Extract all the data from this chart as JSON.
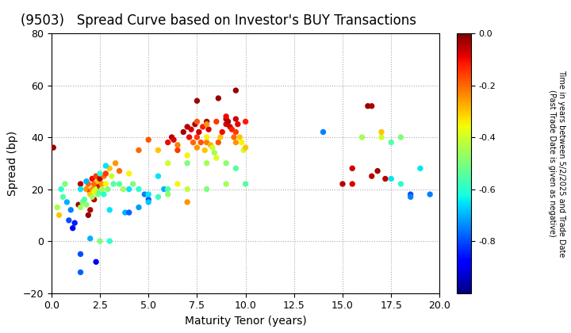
{
  "title": "(9503)   Spread Curve based on Investor's BUY Transactions",
  "xlabel": "Maturity Tenor (years)",
  "ylabel": "Spread (bp)",
  "colorbar_label": "Time in years between 5/2/2025 and Trade Date\n(Past Trade Date is given as negative)",
  "xlim": [
    0.0,
    20.0
  ],
  "ylim": [
    -20,
    80
  ],
  "xticks": [
    0.0,
    2.5,
    5.0,
    7.5,
    10.0,
    12.5,
    15.0,
    17.5,
    20.0
  ],
  "yticks": [
    -20,
    0,
    20,
    40,
    60,
    80
  ],
  "cmap": "jet",
  "vmin": -1.0,
  "vmax": 0.0,
  "colorbar_ticks": [
    0.0,
    -0.2,
    -0.4,
    -0.6,
    -0.8
  ],
  "points": [
    [
      0.1,
      36,
      -0.02
    ],
    [
      0.3,
      13,
      -0.45
    ],
    [
      0.4,
      10,
      -0.3
    ],
    [
      0.5,
      20,
      -0.6
    ],
    [
      0.6,
      17,
      -0.55
    ],
    [
      0.7,
      22,
      -0.5
    ],
    [
      0.8,
      15,
      -0.7
    ],
    [
      0.9,
      8,
      -0.8
    ],
    [
      1.0,
      12,
      -0.75
    ],
    [
      1.1,
      5,
      -0.9
    ],
    [
      1.2,
      7,
      -0.85
    ],
    [
      1.4,
      14,
      -0.02
    ],
    [
      1.5,
      22,
      -0.05
    ],
    [
      1.5,
      13,
      -0.45
    ],
    [
      1.6,
      15,
      -0.5
    ],
    [
      1.7,
      16,
      -0.55
    ],
    [
      1.8,
      14,
      -0.48
    ],
    [
      1.9,
      10,
      -0.02
    ],
    [
      2.0,
      12,
      -0.05
    ],
    [
      1.8,
      20,
      -0.25
    ],
    [
      1.9,
      22,
      -0.2
    ],
    [
      2.0,
      19,
      -0.15
    ],
    [
      2.1,
      24,
      -0.1
    ],
    [
      2.2,
      16,
      -0.05
    ],
    [
      2.3,
      21,
      -0.02
    ],
    [
      2.0,
      18,
      -0.3
    ],
    [
      2.1,
      20,
      -0.25
    ],
    [
      2.1,
      17,
      -0.45
    ],
    [
      2.2,
      19,
      -0.35
    ],
    [
      2.2,
      22,
      -0.2
    ],
    [
      2.3,
      25,
      -0.15
    ],
    [
      2.3,
      20,
      -0.4
    ],
    [
      2.4,
      23,
      -0.3
    ],
    [
      2.4,
      18,
      -0.5
    ],
    [
      2.5,
      21,
      -0.1
    ],
    [
      2.5,
      19,
      -0.55
    ],
    [
      2.5,
      24,
      -0.05
    ],
    [
      2.6,
      22,
      -0.25
    ],
    [
      2.6,
      20,
      -0.45
    ],
    [
      2.7,
      25,
      -0.2
    ],
    [
      2.7,
      18,
      -0.6
    ],
    [
      2.8,
      26,
      -0.15
    ],
    [
      2.8,
      22,
      -0.35
    ],
    [
      2.9,
      20,
      -0.5
    ],
    [
      3.0,
      28,
      -0.3
    ],
    [
      3.0,
      12,
      -0.65
    ],
    [
      3.1,
      25,
      -0.4
    ],
    [
      3.2,
      22,
      -0.55
    ],
    [
      3.3,
      30,
      -0.25
    ],
    [
      3.5,
      27,
      -0.2
    ],
    [
      3.7,
      20,
      -0.45
    ],
    [
      3.8,
      11,
      -0.7
    ],
    [
      4.0,
      26,
      -0.35
    ],
    [
      4.2,
      22,
      -0.5
    ],
    [
      4.5,
      20,
      -0.6
    ],
    [
      4.8,
      18,
      -0.75
    ],
    [
      5.0,
      16,
      -0.8
    ],
    [
      5.5,
      25,
      -0.65
    ],
    [
      5.8,
      20,
      -0.7
    ],
    [
      6.0,
      38,
      -0.1
    ],
    [
      6.2,
      40,
      -0.05
    ],
    [
      6.3,
      39,
      -0.08
    ],
    [
      6.5,
      35,
      -0.15
    ],
    [
      6.8,
      42,
      -0.03
    ],
    [
      7.0,
      44,
      -0.05
    ],
    [
      7.1,
      40,
      -0.1
    ],
    [
      7.2,
      43,
      -0.08
    ],
    [
      7.3,
      38,
      -0.2
    ],
    [
      7.4,
      45,
      -0.03
    ],
    [
      7.5,
      36,
      -0.25
    ],
    [
      7.5,
      40,
      -0.15
    ],
    [
      7.6,
      42,
      -0.07
    ],
    [
      7.7,
      38,
      -0.18
    ],
    [
      7.8,
      44,
      -0.12
    ],
    [
      7.9,
      35,
      -0.3
    ],
    [
      8.0,
      46,
      -0.04
    ],
    [
      8.0,
      38,
      -0.22
    ],
    [
      8.0,
      40,
      -0.35
    ],
    [
      8.1,
      43,
      -0.08
    ],
    [
      8.2,
      37,
      -0.28
    ],
    [
      8.3,
      36,
      -0.4
    ],
    [
      8.4,
      34,
      -0.45
    ],
    [
      8.6,
      55,
      -0.02
    ],
    [
      8.6,
      38,
      -0.18
    ],
    [
      8.7,
      40,
      -0.3
    ],
    [
      8.8,
      42,
      -0.1
    ],
    [
      9.0,
      47,
      -0.05
    ],
    [
      9.0,
      45,
      -0.08
    ],
    [
      9.1,
      46,
      -0.04
    ],
    [
      9.2,
      44,
      -0.07
    ],
    [
      9.3,
      43,
      -0.12
    ],
    [
      9.4,
      40,
      -0.2
    ],
    [
      9.5,
      38,
      -0.25
    ],
    [
      9.5,
      42,
      -0.15
    ],
    [
      9.6,
      45,
      -0.09
    ],
    [
      9.7,
      40,
      -0.3
    ],
    [
      9.8,
      38,
      -0.35
    ],
    [
      9.9,
      35,
      -0.4
    ],
    [
      10.0,
      36,
      -0.3
    ],
    [
      10.0,
      22,
      -0.55
    ],
    [
      9.5,
      58,
      -0.02
    ],
    [
      14.0,
      42,
      -0.75
    ],
    [
      15.0,
      22,
      -0.05
    ],
    [
      15.5,
      22,
      -0.08
    ],
    [
      16.3,
      52,
      -0.02
    ],
    [
      16.5,
      52,
      -0.04
    ],
    [
      16.5,
      25,
      -0.05
    ],
    [
      16.8,
      27,
      -0.03
    ],
    [
      17.0,
      40,
      -0.4
    ],
    [
      17.0,
      42,
      -0.3
    ],
    [
      17.5,
      38,
      -0.55
    ],
    [
      17.5,
      24,
      -0.65
    ],
    [
      18.0,
      40,
      -0.5
    ],
    [
      18.0,
      22,
      -0.6
    ],
    [
      18.5,
      18,
      -0.8
    ],
    [
      19.0,
      28,
      -0.65
    ],
    [
      19.5,
      18,
      -0.75
    ],
    [
      7.5,
      54,
      -0.03
    ],
    [
      7.0,
      15,
      -0.25
    ],
    [
      6.5,
      22,
      -0.35
    ],
    [
      3.5,
      22,
      -0.55
    ],
    [
      4.0,
      20,
      -0.65
    ],
    [
      2.5,
      0,
      -0.5
    ],
    [
      2.0,
      1,
      -0.7
    ],
    [
      1.5,
      -5,
      -0.8
    ],
    [
      1.5,
      -12,
      -0.78
    ],
    [
      2.3,
      -8,
      -0.9
    ],
    [
      3.0,
      0,
      -0.6
    ],
    [
      5.0,
      18,
      -0.65
    ],
    [
      6.0,
      20,
      -0.55
    ],
    [
      5.5,
      35,
      -0.3
    ],
    [
      6.0,
      30,
      -0.4
    ],
    [
      7.0,
      30,
      -0.5
    ],
    [
      7.0,
      33,
      -0.35
    ],
    [
      8.0,
      30,
      -0.45
    ],
    [
      8.5,
      32,
      -0.38
    ],
    [
      9.0,
      30,
      -0.48
    ],
    [
      9.5,
      28,
      -0.55
    ],
    [
      4.5,
      35,
      -0.2
    ],
    [
      5.0,
      39,
      -0.18
    ],
    [
      6.5,
      37,
      -0.22
    ],
    [
      7.5,
      46,
      -0.18
    ],
    [
      8.0,
      45,
      -0.25
    ],
    [
      8.5,
      46,
      -0.15
    ],
    [
      9.0,
      48,
      -0.1
    ],
    [
      9.5,
      47,
      -0.07
    ],
    [
      10.0,
      46,
      -0.12
    ],
    [
      9.0,
      22,
      -0.45
    ],
    [
      8.0,
      20,
      -0.5
    ],
    [
      7.0,
      20,
      -0.42
    ],
    [
      6.0,
      18,
      -0.48
    ],
    [
      5.5,
      17,
      -0.58
    ],
    [
      5.0,
      15,
      -0.68
    ],
    [
      4.5,
      13,
      -0.72
    ],
    [
      4.0,
      11,
      -0.78
    ],
    [
      2.5,
      26,
      -0.6
    ],
    [
      2.8,
      29,
      -0.65
    ],
    [
      1.5,
      20,
      -0.65
    ],
    [
      1.8,
      23,
      -0.7
    ],
    [
      17.2,
      24,
      -0.05
    ],
    [
      18.5,
      17,
      -0.75
    ],
    [
      15.5,
      28,
      -0.07
    ],
    [
      16.0,
      40,
      -0.45
    ]
  ],
  "marker_size": 28,
  "grid_color": "#aaaaaa",
  "grid_linestyle": ":",
  "grid_linewidth": 0.8,
  "background_color": "#ffffff",
  "title_fontsize": 12,
  "label_fontsize": 10
}
